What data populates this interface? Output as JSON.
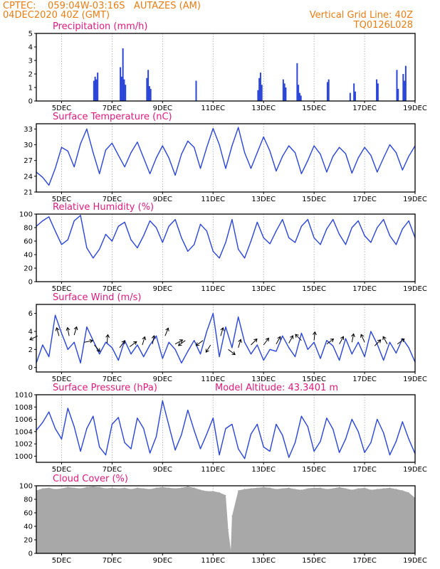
{
  "header": {
    "line1": "CPTEC:    059:04W-03:16S   AUTAZES (AM)",
    "line2": "04DEC2020 40Z (GMT)",
    "grid_note": "Vertical Grid Line: 40Z",
    "run_code": "TQ0126L028"
  },
  "colors": {
    "header": "#e87d14",
    "title": "#e0197d",
    "line": "#2a45d8",
    "cloud": "#a8a8a8",
    "wind_arrow": "#000000"
  },
  "x_axis": {
    "start_day": 4.0,
    "end_day": 19.0,
    "tick_labels": [
      "5DEC",
      "7DEC",
      "9DEC",
      "11DEC",
      "13DEC",
      "15DEC",
      "17DEC",
      "19DEC"
    ],
    "tick_days": [
      5,
      7,
      9,
      11,
      13,
      15,
      17,
      19
    ]
  },
  "chart_data": [
    {
      "type": "bar",
      "title": "Precipitation (mm/h)",
      "ylim": [
        0,
        5
      ],
      "yticks": [
        0,
        1,
        2,
        3,
        4,
        5
      ],
      "x_unit": "day of December 2020",
      "x": [
        6.28,
        6.33,
        6.38,
        6.43,
        7.33,
        7.38,
        7.43,
        7.48,
        7.53,
        8.38,
        8.43,
        8.48,
        8.53,
        10.33,
        12.78,
        12.83,
        12.88,
        12.93,
        13.78,
        13.83,
        13.88,
        14.33,
        14.38,
        14.43,
        14.48,
        15.53,
        15.58,
        16.43,
        16.58,
        16.63,
        17.48,
        17.53,
        18.28,
        18.33,
        18.53,
        18.58,
        18.63
      ],
      "values": [
        1.5,
        1.8,
        1.6,
        2.1,
        2.5,
        1.8,
        3.9,
        1.6,
        1.2,
        1.7,
        2.3,
        1.1,
        0.9,
        1.5,
        0.8,
        1.7,
        2.1,
        1.2,
        1.6,
        1.3,
        1.0,
        2.8,
        1.2,
        0.6,
        0.4,
        1.4,
        1.6,
        0.6,
        1.3,
        0.7,
        1.6,
        1.3,
        2.3,
        0.9,
        2.0,
        1.5,
        2.6
      ]
    },
    {
      "type": "line",
      "title": "Surface Temperature (nC)",
      "ylim": [
        21,
        34
      ],
      "yticks": [
        21,
        24,
        27,
        30,
        33
      ],
      "x_unit": "day of December 2020",
      "x": [
        4.0,
        4.25,
        4.5,
        4.75,
        5.0,
        5.25,
        5.5,
        5.75,
        6.0,
        6.25,
        6.5,
        6.75,
        7.0,
        7.25,
        7.5,
        7.75,
        8.0,
        8.25,
        8.5,
        8.75,
        9.0,
        9.25,
        9.5,
        9.75,
        10.0,
        10.25,
        10.5,
        10.75,
        11.0,
        11.25,
        11.5,
        11.75,
        12.0,
        12.25,
        12.5,
        12.75,
        13.0,
        13.25,
        13.5,
        13.75,
        14.0,
        14.25,
        14.5,
        14.75,
        15.0,
        15.25,
        15.5,
        15.75,
        16.0,
        16.25,
        16.5,
        16.75,
        17.0,
        17.25,
        17.5,
        17.75,
        18.0,
        18.25,
        18.5,
        18.75,
        19.0
      ],
      "values": [
        24.8,
        23.8,
        22.3,
        25.5,
        29.5,
        28.8,
        25.8,
        30.2,
        33.0,
        28.5,
        24.5,
        29.0,
        30.3,
        28.0,
        25.8,
        28.5,
        30.5,
        27.5,
        24.5,
        27.5,
        29.8,
        27.5,
        24.2,
        28.2,
        30.7,
        29.5,
        25.5,
        29.5,
        33.1,
        30.0,
        25.5,
        29.8,
        33.3,
        28.5,
        25.5,
        28.5,
        31.5,
        28.8,
        25.0,
        27.8,
        29.8,
        28.5,
        24.5,
        27.0,
        29.8,
        28.2,
        24.8,
        27.8,
        29.5,
        28.3,
        24.6,
        27.5,
        29.5,
        28.0,
        24.8,
        27.5,
        30.0,
        28.5,
        25.2,
        27.8,
        29.8
      ]
    },
    {
      "type": "line",
      "title": "Relative Humidity (%)",
      "ylim": [
        0,
        100
      ],
      "yticks": [
        0,
        20,
        40,
        60,
        80,
        100
      ],
      "x_unit": "day of December 2020",
      "x": [
        4.0,
        4.25,
        4.5,
        4.75,
        5.0,
        5.25,
        5.5,
        5.75,
        6.0,
        6.25,
        6.5,
        6.75,
        7.0,
        7.25,
        7.5,
        7.75,
        8.0,
        8.25,
        8.5,
        8.75,
        9.0,
        9.25,
        9.5,
        9.75,
        10.0,
        10.25,
        10.5,
        10.75,
        11.0,
        11.25,
        11.5,
        11.75,
        12.0,
        12.25,
        12.5,
        12.75,
        13.0,
        13.25,
        13.5,
        13.75,
        14.0,
        14.25,
        14.5,
        14.75,
        15.0,
        15.25,
        15.5,
        15.75,
        16.0,
        16.25,
        16.5,
        16.75,
        17.0,
        17.25,
        17.5,
        17.75,
        18.0,
        18.25,
        18.5,
        18.75,
        19.0
      ],
      "values": [
        82,
        90,
        96,
        75,
        55,
        62,
        90,
        98,
        50,
        35,
        48,
        70,
        60,
        82,
        88,
        62,
        50,
        68,
        90,
        80,
        58,
        82,
        92,
        65,
        45,
        55,
        85,
        75,
        45,
        35,
        58,
        92,
        48,
        35,
        60,
        88,
        65,
        56,
        75,
        92,
        65,
        58,
        82,
        92,
        65,
        55,
        78,
        92,
        70,
        55,
        80,
        90,
        68,
        58,
        80,
        92,
        68,
        55,
        78,
        90,
        65
      ]
    },
    {
      "type": "line",
      "title": "Surface Wind (m/s)",
      "ylim": [
        -0.5,
        7
      ],
      "yticks": [
        0,
        2,
        4,
        6
      ],
      "x_unit": "day of December 2020",
      "x": [
        4.0,
        4.25,
        4.5,
        4.75,
        5.0,
        5.25,
        5.5,
        5.75,
        6.0,
        6.25,
        6.5,
        6.75,
        7.0,
        7.25,
        7.5,
        7.75,
        8.0,
        8.25,
        8.5,
        8.75,
        9.0,
        9.25,
        9.5,
        9.75,
        10.0,
        10.25,
        10.5,
        10.75,
        11.0,
        11.25,
        11.5,
        11.75,
        12.0,
        12.25,
        12.5,
        12.75,
        13.0,
        13.25,
        13.5,
        13.75,
        14.0,
        14.25,
        14.5,
        14.75,
        15.0,
        15.25,
        15.5,
        15.75,
        16.0,
        16.25,
        16.5,
        16.75,
        17.0,
        17.25,
        17.5,
        17.75,
        18.0,
        18.25,
        18.5,
        18.75,
        19.0
      ],
      "values": [
        0.5,
        2.5,
        1.2,
        5.8,
        3.8,
        2.0,
        2.8,
        0.5,
        4.5,
        3.0,
        1.5,
        2.8,
        2.2,
        0.8,
        3.0,
        1.5,
        2.5,
        1.2,
        2.5,
        3.5,
        1.0,
        2.8,
        2.0,
        0.5,
        1.8,
        3.0,
        1.5,
        4.0,
        6.0,
        1.2,
        4.5,
        2.2,
        5.6,
        2.8,
        1.5,
        2.5,
        0.8,
        2.0,
        1.8,
        3.5,
        2.2,
        1.2,
        3.8,
        2.0,
        2.8,
        1.0,
        3.0,
        2.4,
        0.8,
        3.2,
        1.5,
        2.8,
        1.2,
        4.0,
        2.6,
        0.8,
        2.8,
        1.6,
        3.2,
        2.2,
        0.6
      ],
      "wind_arrows": [
        {
          "x": 4.05,
          "y": 3.5,
          "dx": -1,
          "dy": -0.5
        },
        {
          "x": 4.9,
          "y": 3.5,
          "dx": -0.3,
          "dy": 1
        },
        {
          "x": 5.3,
          "y": 3.5,
          "dx": -0.2,
          "dy": 1
        },
        {
          "x": 5.5,
          "y": 3.6,
          "dx": 0.3,
          "dy": 1
        },
        {
          "x": 5.9,
          "y": 2.8,
          "dx": 1,
          "dy": 0.2
        },
        {
          "x": 6.3,
          "y": 2.5,
          "dx": 0.5,
          "dy": -0.6
        },
        {
          "x": 6.8,
          "y": 2.7,
          "dx": 0.1,
          "dy": 1
        },
        {
          "x": 7.3,
          "y": 2.2,
          "dx": 0.6,
          "dy": 0.8
        },
        {
          "x": 7.7,
          "y": 2.3,
          "dx": 0.8,
          "dy": 0.6
        },
        {
          "x": 8.2,
          "y": 2.5,
          "dx": 0.3,
          "dy": 1
        },
        {
          "x": 8.6,
          "y": 2.6,
          "dx": 0.2,
          "dy": 1
        },
        {
          "x": 9.1,
          "y": 3.5,
          "dx": 0.4,
          "dy": 1
        },
        {
          "x": 9.5,
          "y": 2.6,
          "dx": 0.9,
          "dy": 0.5
        },
        {
          "x": 9.9,
          "y": 3.0,
          "dx": -0.8,
          "dy": -0.6
        },
        {
          "x": 10.6,
          "y": 3.0,
          "dx": -0.8,
          "dy": -0.6
        },
        {
          "x": 10.9,
          "y": 2.5,
          "dx": -0.5,
          "dy": -0.8
        },
        {
          "x": 11.3,
          "y": 3.5,
          "dx": 0.3,
          "dy": 1
        },
        {
          "x": 11.6,
          "y": 2.0,
          "dx": 0.8,
          "dy": -0.6
        },
        {
          "x": 12.0,
          "y": 2.2,
          "dx": 0.3,
          "dy": 1
        },
        {
          "x": 12.5,
          "y": 2.5,
          "dx": 0.7,
          "dy": 0.7
        },
        {
          "x": 13.0,
          "y": 2.5,
          "dx": 0.6,
          "dy": 0.8
        },
        {
          "x": 13.5,
          "y": 2.6,
          "dx": 0.5,
          "dy": 0.9
        },
        {
          "x": 14.0,
          "y": 2.7,
          "dx": 0.5,
          "dy": 0.9
        },
        {
          "x": 14.5,
          "y": 3.0,
          "dx": -0.7,
          "dy": 0.7
        },
        {
          "x": 15.0,
          "y": 3.0,
          "dx": 0.1,
          "dy": 1
        },
        {
          "x": 15.5,
          "y": 2.6,
          "dx": 0.8,
          "dy": 0.6
        },
        {
          "x": 16.0,
          "y": 2.6,
          "dx": 0.5,
          "dy": 0.9
        },
        {
          "x": 16.5,
          "y": 2.8,
          "dx": 0.2,
          "dy": 1
        },
        {
          "x": 17.0,
          "y": 2.8,
          "dx": -0.4,
          "dy": 0.9
        },
        {
          "x": 17.4,
          "y": 2.4,
          "dx": 0.7,
          "dy": 0.7
        },
        {
          "x": 17.9,
          "y": 2.6,
          "dx": -0.5,
          "dy": 0.9
        },
        {
          "x": 18.3,
          "y": 2.6,
          "dx": 0.8,
          "dy": 0.6
        }
      ]
    },
    {
      "type": "line",
      "title": "Surface Pressure (hPa)",
      "annotation": "Model Altitude: 43.3401 m",
      "ylim": [
        999,
        1010
      ],
      "yticks": [
        1000,
        1002,
        1004,
        1006,
        1008,
        1010
      ],
      "x_unit": "day of December 2020",
      "x": [
        4.0,
        4.25,
        4.5,
        4.75,
        5.0,
        5.25,
        5.5,
        5.75,
        6.0,
        6.25,
        6.5,
        6.75,
        7.0,
        7.25,
        7.5,
        7.75,
        8.0,
        8.25,
        8.5,
        8.75,
        9.0,
        9.25,
        9.5,
        9.75,
        10.0,
        10.25,
        10.5,
        10.75,
        11.0,
        11.25,
        11.5,
        11.75,
        12.0,
        12.25,
        12.5,
        12.75,
        13.0,
        13.25,
        13.5,
        13.75,
        14.0,
        14.25,
        14.5,
        14.75,
        15.0,
        15.25,
        15.5,
        15.75,
        16.0,
        16.25,
        16.5,
        16.75,
        17.0,
        17.25,
        17.5,
        17.75,
        18.0,
        18.25,
        18.5,
        18.75,
        19.0
      ],
      "values": [
        1004.2,
        1005.5,
        1007.2,
        1004.5,
        1002.8,
        1007.8,
        1004.8,
        1000.8,
        1004.5,
        1006.5,
        1001.5,
        1000.2,
        1005.2,
        1006.3,
        1002.2,
        1001.2,
        1006.2,
        1004.5,
        1000.5,
        1003.2,
        1009.0,
        1005.0,
        1001.0,
        1003.5,
        1007.5,
        1004.2,
        1001.2,
        1003.6,
        1006.2,
        1000.2,
        1004.5,
        1005.2,
        1001.2,
        999.6,
        1003.6,
        1005.2,
        1001.5,
        1000.8,
        1005.2,
        1003.4,
        999.8,
        1002.2,
        1006.5,
        1004.8,
        1000.8,
        1002.4,
        1006.2,
        1004.4,
        1000.6,
        1002.8,
        1006.0,
        1004.0,
        1000.6,
        1002.2,
        1006.0,
        1003.8,
        1000.2,
        1002.4,
        1005.6,
        1002.8,
        1000.4
      ]
    },
    {
      "type": "area",
      "title": "Cloud Cover (%)",
      "ylim": [
        0,
        100
      ],
      "yticks": [
        0,
        20,
        40,
        60,
        80,
        100
      ],
      "x_unit": "day of December 2020",
      "x": [
        4.0,
        4.25,
        4.5,
        4.75,
        5.0,
        5.25,
        5.5,
        5.75,
        6.0,
        6.25,
        6.5,
        6.75,
        7.0,
        7.25,
        7.5,
        7.75,
        8.0,
        8.25,
        8.5,
        8.75,
        9.0,
        9.25,
        9.5,
        9.75,
        10.0,
        10.25,
        10.5,
        10.75,
        11.0,
        11.25,
        11.5,
        11.6,
        11.7,
        11.75,
        12.0,
        12.25,
        12.5,
        12.75,
        13.0,
        13.25,
        13.5,
        13.75,
        14.0,
        14.25,
        14.5,
        14.75,
        15.0,
        15.25,
        15.5,
        15.75,
        16.0,
        16.25,
        16.5,
        16.75,
        17.0,
        17.25,
        17.5,
        17.75,
        18.0,
        18.25,
        18.5,
        18.75,
        19.0
      ],
      "values": [
        93,
        96,
        97,
        95,
        96,
        98,
        97,
        96,
        98,
        99,
        98,
        96,
        97,
        96,
        97,
        95,
        97,
        96,
        95,
        97,
        98,
        97,
        96,
        97,
        99,
        97,
        94,
        92,
        92,
        90,
        86,
        35,
        5,
        55,
        93,
        95,
        96,
        97,
        98,
        97,
        95,
        96,
        97,
        95,
        94,
        96,
        97,
        97,
        95,
        96,
        98,
        96,
        94,
        96,
        97,
        94,
        95,
        96,
        97,
        95,
        93,
        90,
        82
      ]
    }
  ]
}
